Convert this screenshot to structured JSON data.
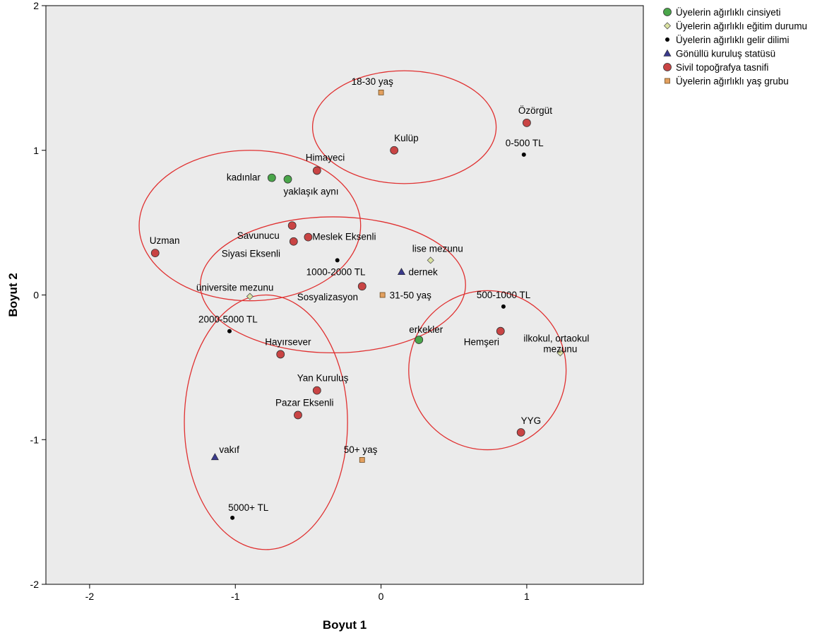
{
  "chart_data": {
    "type": "scatter",
    "xlabel": "Boyut 1",
    "ylabel": "Boyut 2",
    "xlim": [
      -2.3,
      1.8
    ],
    "ylim": [
      -2,
      2
    ],
    "xticks": [
      "-2",
      "-1",
      "0",
      "1"
    ],
    "yticks": [
      "2",
      "1",
      "0",
      "-1",
      "-2"
    ],
    "xtick_values": [
      -2,
      -1,
      0,
      1
    ],
    "ytick_values": [
      2,
      1,
      0,
      -1,
      -2
    ],
    "grid": false,
    "legend_position": "top-right, outside plot",
    "plot_background": "#ebebeb",
    "series": [
      {
        "name": "Üyelerin ağırlıklı cinsiyeti",
        "marker": "circle",
        "color": "#4aa64a",
        "points": [
          {
            "label": "kadınlar",
            "x": -0.75,
            "y": 0.81
          },
          {
            "label": "yaklaşık aynı",
            "x": -0.64,
            "y": 0.8
          },
          {
            "label": "erkekler",
            "x": 0.26,
            "y": -0.31
          }
        ]
      },
      {
        "name": "Üyelerin ağırlıklı eğitim durumu",
        "marker": "diamond",
        "color": "#dbe3a2",
        "points": [
          {
            "label": "lise mezunu",
            "x": 0.34,
            "y": 0.24
          },
          {
            "label": "üniversite mezunu",
            "x": -0.9,
            "y": -0.01
          },
          {
            "label": "ilkokul, ortaokul mezunu",
            "x": 1.23,
            "y": -0.4
          }
        ]
      },
      {
        "name": "Üyelerin ağırlıklı gelir dilimi",
        "marker": "dot",
        "color": "#000000",
        "points": [
          {
            "label": "0-500 TL",
            "x": 0.98,
            "y": 0.97
          },
          {
            "label": "1000-2000 TL",
            "x": -0.3,
            "y": 0.24
          },
          {
            "label": "500-1000 TL",
            "x": 0.84,
            "y": -0.08
          },
          {
            "label": "2000-5000 TL",
            "x": -1.04,
            "y": -0.25
          },
          {
            "label": "5000+ TL",
            "x": -1.02,
            "y": -1.54
          }
        ]
      },
      {
        "name": "Gönüllü kuruluş statüsü",
        "marker": "triangle",
        "color": "#3a3a8c",
        "points": [
          {
            "label": "dernek",
            "x": 0.14,
            "y": 0.16
          },
          {
            "label": "vakıf",
            "x": -1.14,
            "y": -1.12
          }
        ]
      },
      {
        "name": "Sivil topoğrafya tasnifi",
        "marker": "circle",
        "color": "#c94444",
        "points": [
          {
            "label": "Özörgüt",
            "x": 1.0,
            "y": 1.19
          },
          {
            "label": "Kulüp",
            "x": 0.09,
            "y": 1.0
          },
          {
            "label": "Himayeci",
            "x": -0.44,
            "y": 0.86
          },
          {
            "label": "Savunucu",
            "x": -0.61,
            "y": 0.48
          },
          {
            "label": "Meslek Eksenli",
            "x": -0.5,
            "y": 0.4
          },
          {
            "label": "Siyasi Eksenli",
            "x": -0.6,
            "y": 0.37
          },
          {
            "label": "Uzman",
            "x": -1.55,
            "y": 0.29
          },
          {
            "label": "Sosyalizasyon",
            "x": -0.13,
            "y": 0.06
          },
          {
            "label": "Hemşeri",
            "x": 0.82,
            "y": -0.25
          },
          {
            "label": "Hayırsever",
            "x": -0.69,
            "y": -0.41
          },
          {
            "label": "Yan Kuruluş",
            "x": -0.44,
            "y": -0.66
          },
          {
            "label": "Pazar Eksenli",
            "x": -0.57,
            "y": -0.83
          },
          {
            "label": "YYG",
            "x": 0.96,
            "y": -0.95
          }
        ]
      },
      {
        "name": "Üyelerin ağırlıklı yaş grubu",
        "marker": "square",
        "color": "#e3a05f",
        "points": [
          {
            "label": "18-30 yaş",
            "x": 0.0,
            "y": 1.4
          },
          {
            "label": "31-50 yaş",
            "x": 0.01,
            "y": 0.0
          },
          {
            "label": "50+ yaş",
            "x": -0.13,
            "y": -1.14
          }
        ]
      }
    ],
    "annotations": {
      "ellipse_color": "#e03030",
      "ellipses": [
        {
          "cx": 0.16,
          "cy": 1.16,
          "rx": 0.63,
          "ry": 0.39
        },
        {
          "cx": -0.9,
          "cy": 0.48,
          "rx": 0.76,
          "ry": 0.52
        },
        {
          "cx": -0.33,
          "cy": 0.07,
          "rx": 0.91,
          "ry": 0.47
        },
        {
          "cx": 0.73,
          "cy": -0.52,
          "rx": 0.54,
          "ry": 0.55
        },
        {
          "cx": -0.79,
          "cy": -0.88,
          "rx": 0.56,
          "ry": 0.88
        }
      ]
    }
  }
}
